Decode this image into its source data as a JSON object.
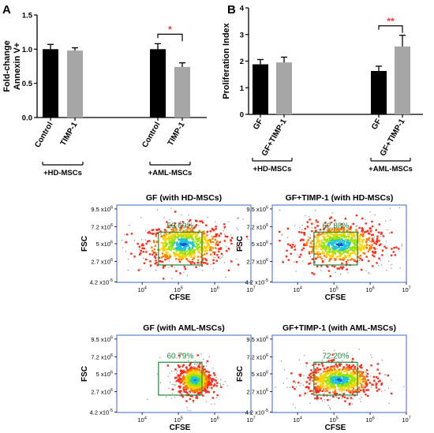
{
  "panel_labels": [
    "A",
    "B"
  ],
  "colors": {
    "black_bar": "#000000",
    "gray_bar": "#a6a6a6",
    "significance_single": "#ff3333",
    "significance_double": "#ff3333",
    "gate": "#1f8a3a",
    "gate_label": "#1f8a3a",
    "plot_frame": "#3c64c8"
  },
  "chart_data": [
    {
      "id": "A",
      "type": "bar",
      "ylabel_lines": [
        "Fold-change",
        "Annexin V+"
      ],
      "ylim": [
        0,
        1.5
      ],
      "yticks": [
        "0.0",
        "0.5",
        "1.0",
        "1.5"
      ],
      "yticks_values": [
        0,
        0.5,
        1.0,
        1.5
      ],
      "categories": [
        "Control",
        "TIMP-1",
        "Control",
        "TIMP-1"
      ],
      "values": [
        1.0,
        0.98,
        1.0,
        0.74
      ],
      "errors": [
        0.07,
        0.04,
        0.08,
        0.06
      ],
      "bar_colors": [
        "black",
        "gray",
        "black",
        "gray"
      ],
      "groups": [
        "+HD-MSCs",
        "+AML-MSCs"
      ],
      "significance": {
        "between": [
          2,
          3
        ],
        "label": "*"
      }
    },
    {
      "id": "B",
      "type": "bar",
      "ylabel_lines": [
        "Proliferation Index"
      ],
      "ylim": [
        0,
        4
      ],
      "yticks": [
        "0",
        "1",
        "2",
        "3",
        "4"
      ],
      "yticks_values": [
        0,
        1,
        2,
        3,
        4
      ],
      "categories": [
        "GF",
        "GF+TIMP-1",
        "GF",
        "GF+TIMP-1"
      ],
      "values": [
        1.88,
        1.95,
        1.63,
        2.55
      ],
      "errors": [
        0.18,
        0.2,
        0.18,
        0.42
      ],
      "bar_colors": [
        "black",
        "gray",
        "black",
        "gray"
      ],
      "groups": [
        "+HD-MSCs",
        "+AML-MSCs"
      ],
      "significance": {
        "between": [
          2,
          3
        ],
        "label": "**"
      }
    },
    {
      "id": "flow-1",
      "type": "scatter",
      "title": "GF (with HD-MSCs)",
      "xlabel": "CFSE",
      "ylabel": "FSC",
      "xticks": [
        {
          "base": "10",
          "exp": "4"
        },
        {
          "base": "10",
          "exp": "5"
        },
        {
          "base": "10",
          "exp": "6"
        },
        {
          "base": "10",
          "exp": "7"
        }
      ],
      "yticks": [
        {
          "m": "4.2 x10",
          "exp": "-5"
        },
        {
          "m": "2.7 x10",
          "exp": "6"
        },
        {
          "m": "5 x10",
          "exp": "6"
        },
        {
          "m": "7.2 x10",
          "exp": "6"
        },
        {
          "m": "9.5 x10",
          "exp": "6"
        }
      ],
      "gate_percent": "59.69%",
      "x_range_log10": [
        3.3,
        7
      ],
      "cloud": {
        "center_log10_cfse": 5.15,
        "center_fsc": 4900000.0,
        "spread_x": 0.55,
        "spread_y": 1300000.0
      }
    },
    {
      "id": "flow-2",
      "type": "scatter",
      "title": "GF+TIMP-1 (with HD-MSCs)",
      "xlabel": "CFSE",
      "ylabel": "FSC",
      "xticks": [
        {
          "base": "10",
          "exp": "4"
        },
        {
          "base": "10",
          "exp": "5"
        },
        {
          "base": "10",
          "exp": "6"
        },
        {
          "base": "10",
          "exp": "7"
        }
      ],
      "yticks": [
        {
          "m": "4.2 x10",
          "exp": "-5"
        },
        {
          "m": "2.7 x10",
          "exp": "6"
        },
        {
          "m": "5 x10",
          "exp": "6"
        },
        {
          "m": "7.2 x10",
          "exp": "6"
        },
        {
          "m": "9.5 x10",
          "exp": "6"
        }
      ],
      "gate_percent": "62.88%",
      "x_range_log10": [
        3.3,
        7
      ],
      "cloud": {
        "center_log10_cfse": 5.15,
        "center_fsc": 4900000.0,
        "spread_x": 0.55,
        "spread_y": 1300000.0
      }
    },
    {
      "id": "flow-3",
      "type": "scatter",
      "title": "GF (with AML-MSCs)",
      "xlabel": "CFSE",
      "ylabel": "FSC",
      "xticks": [
        {
          "base": "10",
          "exp": "4"
        },
        {
          "base": "10",
          "exp": "5"
        },
        {
          "base": "10",
          "exp": "6"
        },
        {
          "base": "10",
          "exp": "7"
        }
      ],
      "yticks": [
        {
          "m": "4.2 x10",
          "exp": "-5"
        },
        {
          "m": "2.7 x10",
          "exp": "6"
        },
        {
          "m": "5 x10",
          "exp": "6"
        },
        {
          "m": "7.2 x10",
          "exp": "6"
        },
        {
          "m": "9.5 x10",
          "exp": "6"
        }
      ],
      "gate_percent": "60.79%",
      "x_range_log10": [
        3.3,
        7
      ],
      "cloud": {
        "center_log10_cfse": 5.45,
        "center_fsc": 4200000.0,
        "spread_x": 0.22,
        "spread_y": 900000.0
      }
    },
    {
      "id": "flow-4",
      "type": "scatter",
      "title": "GF+TIMP-1 (with AML-MSCs)",
      "xlabel": "CFSE",
      "ylabel": "FSC",
      "xticks": [
        {
          "base": "10",
          "exp": "4"
        },
        {
          "base": "10",
          "exp": "5"
        },
        {
          "base": "10",
          "exp": "6"
        },
        {
          "base": "10",
          "exp": "7"
        }
      ],
      "yticks": [
        {
          "m": "4.2 x10",
          "exp": "-5"
        },
        {
          "m": "2.7 x10",
          "exp": "6"
        },
        {
          "m": "5 x10",
          "exp": "6"
        },
        {
          "m": "7.2 x10",
          "exp": "6"
        },
        {
          "m": "9.5 x10",
          "exp": "6"
        }
      ],
      "gate_percent": "72.20%",
      "x_range_log10": [
        3.3,
        7
      ],
      "cloud": {
        "center_log10_cfse": 5.15,
        "center_fsc": 4200000.0,
        "spread_x": 0.45,
        "spread_y": 1000000.0
      }
    }
  ]
}
